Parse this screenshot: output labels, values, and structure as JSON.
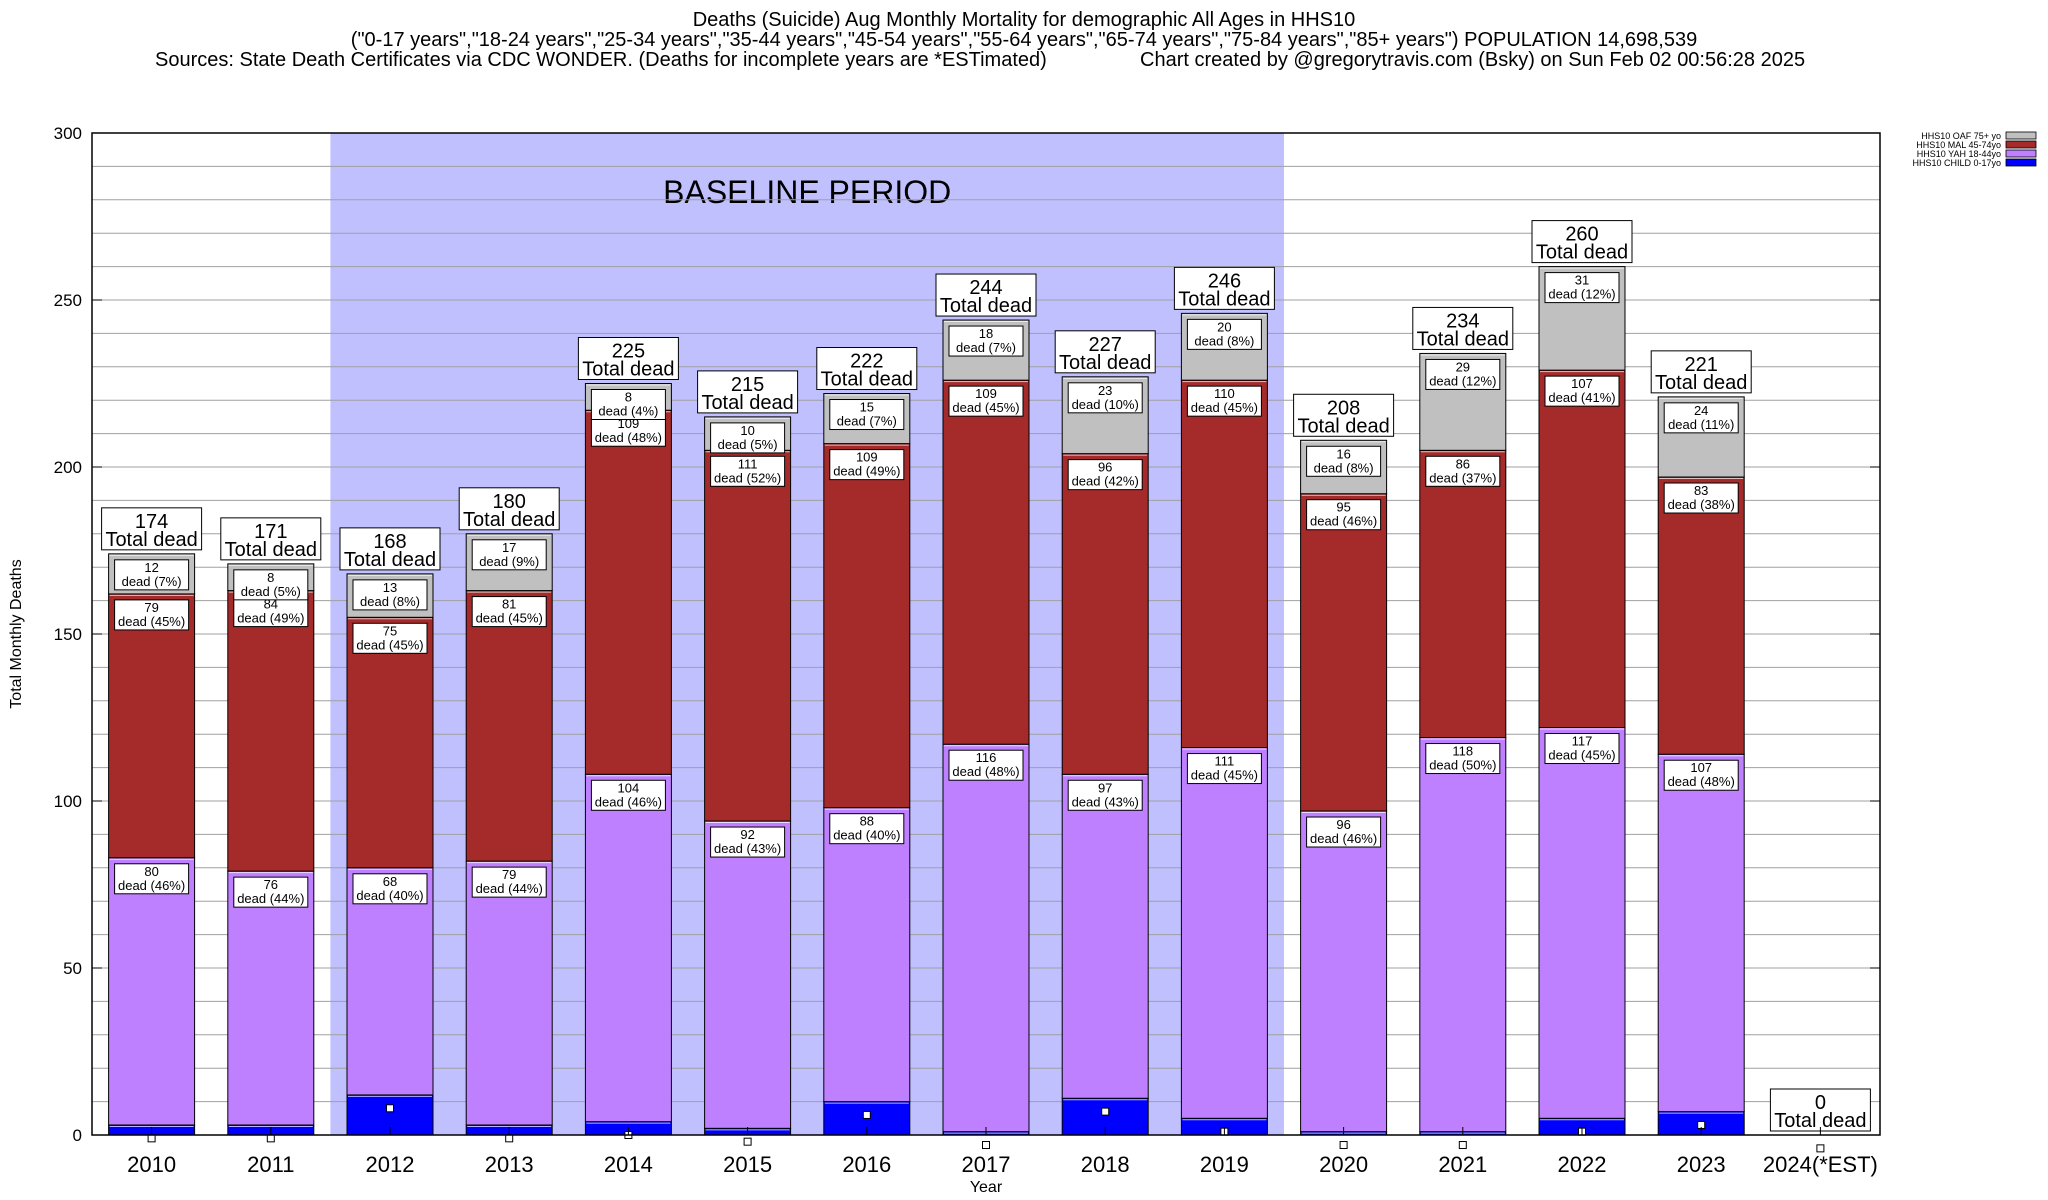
{
  "title": {
    "line1": "Deaths (Suicide) Aug Monthly Mortality for demographic All Ages in HHS10",
    "line2": "(\"0-17 years\",\"18-24 years\",\"25-34 years\",\"35-44 years\",\"45-54 years\",\"55-64 years\",\"65-74 years\",\"75-84 years\",\"85+ years\") POPULATION 14,698,539",
    "line3_left": "Sources: State Death Certificates via CDC WONDER. (Deaths for incomplete years are *ESTimated)",
    "line3_right": "Chart created by @gregorytravis.com (Bsky) on Sun Feb 02 00:56:28 2025"
  },
  "chart_data": {
    "type": "bar",
    "stacked": true,
    "title": "Deaths (Suicide) Aug Monthly Mortality for demographic All Ages in HHS10",
    "xlabel": "Year",
    "ylabel": "Total Monthly Deaths",
    "ylim": [
      0,
      300
    ],
    "yticks": [
      0,
      50,
      100,
      150,
      200,
      250,
      300
    ],
    "grid": true,
    "legend_position": "top-right",
    "baseline_label": "BASELINE PERIOD",
    "baseline_range": [
      "2012",
      "2019"
    ],
    "total_label_word": "Total dead",
    "segment_label_word": "dead",
    "categories": [
      "2010",
      "2011",
      "2012",
      "2013",
      "2014",
      "2015",
      "2016",
      "2017",
      "2018",
      "2019",
      "2020",
      "2021",
      "2022",
      "2023",
      "2024(*EST)"
    ],
    "totals": [
      174,
      171,
      168,
      180,
      225,
      215,
      222,
      244,
      227,
      246,
      208,
      234,
      260,
      221,
      0
    ],
    "series": [
      {
        "name": "HHS10 CHILD 0-17yo",
        "color": "#0000ff",
        "values": [
          3,
          3,
          12,
          3,
          4,
          2,
          10,
          1,
          11,
          5,
          1,
          1,
          5,
          7,
          0
        ],
        "labels": [
          "",
          "",
          "",
          "",
          "",
          "",
          "",
          "",
          "",
          "",
          "",
          "",
          "",
          "",
          ""
        ]
      },
      {
        "name": "HHS10 YAH 18-44yo",
        "color": "#bf80ff",
        "values": [
          80,
          76,
          68,
          79,
          104,
          92,
          88,
          116,
          97,
          111,
          96,
          118,
          117,
          107,
          0
        ],
        "labels": [
          "dead (46%)",
          "dead (44%)",
          "dead (40%)",
          "dead (44%)",
          "dead (46%)",
          "dead (43%)",
          "dead (40%)",
          "dead (48%)",
          "dead (43%)",
          "dead (45%)",
          "dead (46%)",
          "dead (50%)",
          "dead (45%)",
          "dead (48%)",
          ""
        ]
      },
      {
        "name": "HHS10 MAL 45-74yo",
        "color": "#a52a2a",
        "values": [
          79,
          84,
          75,
          81,
          109,
          111,
          109,
          109,
          96,
          110,
          95,
          86,
          107,
          83,
          0
        ],
        "labels": [
          "dead (45%)",
          "dead (49%)",
          "dead (45%)",
          "dead (45%)",
          "dead (48%)",
          "dead (52%)",
          "dead (49%)",
          "dead (45%)",
          "dead (42%)",
          "dead (45%)",
          "dead (46%)",
          "dead (37%)",
          "dead (41%)",
          "dead (38%)",
          ""
        ]
      },
      {
        "name": "HHS10 OAF 75+ yo",
        "color": "#c0c0c0",
        "values": [
          12,
          8,
          13,
          17,
          8,
          10,
          15,
          18,
          23,
          20,
          16,
          29,
          31,
          24,
          0
        ],
        "labels": [
          "dead (7%)",
          "dead (5%)",
          "dead (8%)",
          "dead (9%)",
          "dead (4%)",
          "dead (5%)",
          "dead (7%)",
          "dead (7%)",
          "dead (10%)",
          "dead (8%)",
          "dead (8%)",
          "dead (12%)",
          "dead (12%)",
          "dead (11%)",
          ""
        ]
      }
    ],
    "markers": [
      -1,
      -1,
      8,
      -1,
      0,
      -2,
      6,
      -3,
      7,
      1,
      -3,
      -3,
      1,
      3,
      -4
    ]
  }
}
